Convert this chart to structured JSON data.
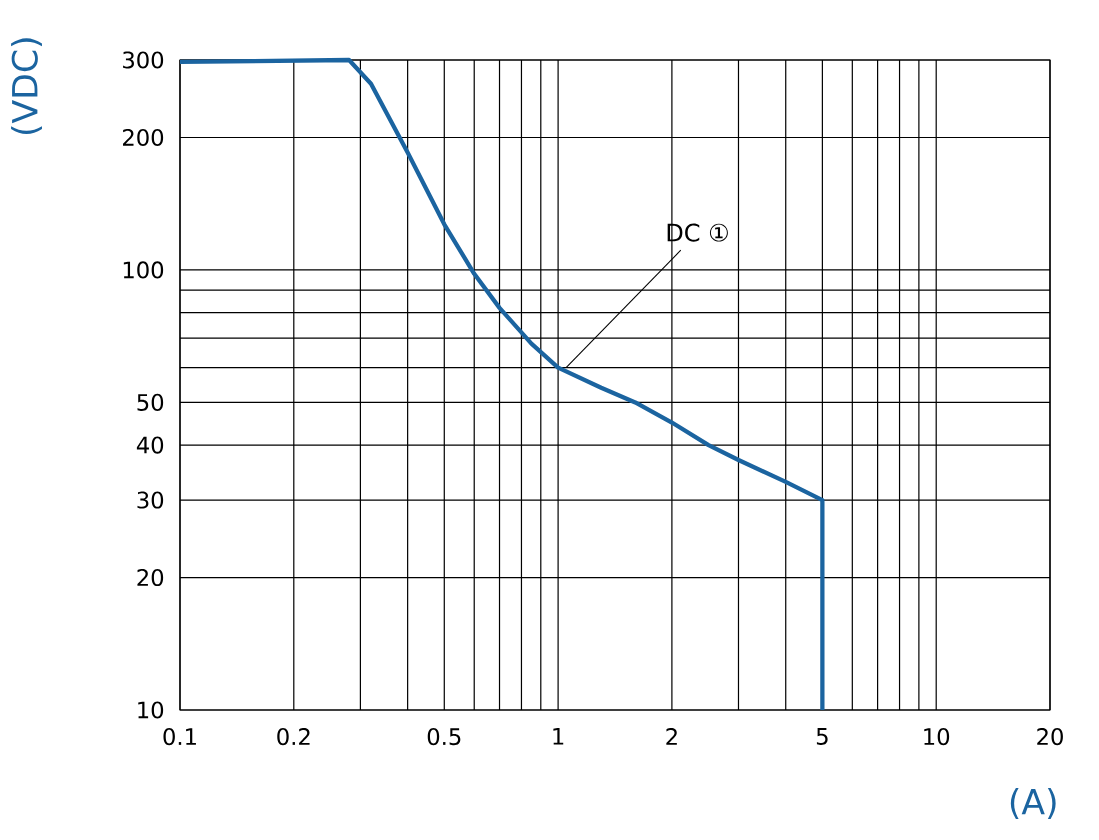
{
  "chart_data": {
    "type": "line",
    "xlabel": "(A)",
    "ylabel": "(VDC)",
    "x": [
      0.1,
      0.28,
      0.32,
      0.4,
      0.5,
      0.6,
      0.7,
      0.85,
      1.0,
      1.3,
      1.6,
      2.0,
      2.5,
      3.0,
      4.0,
      5.0,
      5.0
    ],
    "series": [
      {
        "color": "#1b64a0",
        "values": [
          297,
          300,
          265,
          185,
          127,
          98,
          82,
          68,
          60,
          54,
          50,
          45,
          40,
          37,
          33,
          30,
          10
        ]
      }
    ],
    "log": "xy",
    "xlim": [
      0.1,
      20
    ],
    "ylim": [
      10,
      300
    ],
    "xticks": [
      0.1,
      0.2,
      {
        "value": 0.3,
        "label": null
      },
      {
        "value": 0.4,
        "label": null
      },
      0.5,
      {
        "value": 0.6,
        "label": null
      },
      {
        "value": 0.7,
        "label": null
      },
      {
        "value": 0.8,
        "label": null
      },
      {
        "value": 0.9,
        "label": null
      },
      1,
      2,
      {
        "value": 3,
        "label": null
      },
      {
        "value": 4,
        "label": null
      },
      5,
      {
        "value": 6,
        "label": null
      },
      {
        "value": 7,
        "label": null
      },
      {
        "value": 8,
        "label": null
      },
      {
        "value": 9,
        "label": null
      },
      10,
      20
    ],
    "yticks": [
      10,
      20,
      30,
      40,
      50,
      {
        "value": 60,
        "label": null
      },
      {
        "value": 70,
        "label": null
      },
      {
        "value": 80,
        "label": null
      },
      {
        "value": 90,
        "label": null
      },
      100,
      200,
      300
    ],
    "grid": true,
    "annotations": [
      {
        "text": "DC ①",
        "x": 1.05,
        "y": 60
      }
    ]
  }
}
